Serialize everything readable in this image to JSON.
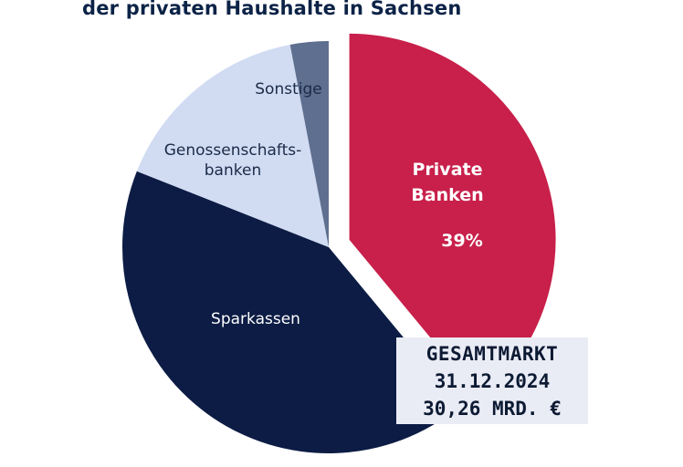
{
  "title_line": "der privaten Haushalte in Sachsen",
  "chart_data": {
    "type": "pie",
    "title": "der privaten Haushalte in Sachsen",
    "slices": [
      {
        "label_lines": [
          "Private",
          "Banken"
        ],
        "value_label": "39%",
        "value": 39,
        "color": "#c8204b",
        "text_color": "#ffffff",
        "exploded": true
      },
      {
        "label_lines": [
          "Sparkassen"
        ],
        "value_label": "",
        "value": 42,
        "color": "#0c1c44",
        "text_color": "#ffffff",
        "exploded": false
      },
      {
        "label_lines": [
          "Genossenschafts-",
          "banken"
        ],
        "value_label": "",
        "value": 16,
        "color": "#d1dcf3",
        "text_color": "#1b2a47",
        "exploded": false
      },
      {
        "label_lines": [
          "Sonstige"
        ],
        "value_label": "",
        "value": 3,
        "color": "#5e6f8f",
        "text_color": "#1b2a47",
        "exploded": false
      }
    ]
  },
  "infobox": {
    "line1": "GESAMTMARKT",
    "line2": "31.12.2024",
    "line3": "30,26 MRD. €"
  }
}
